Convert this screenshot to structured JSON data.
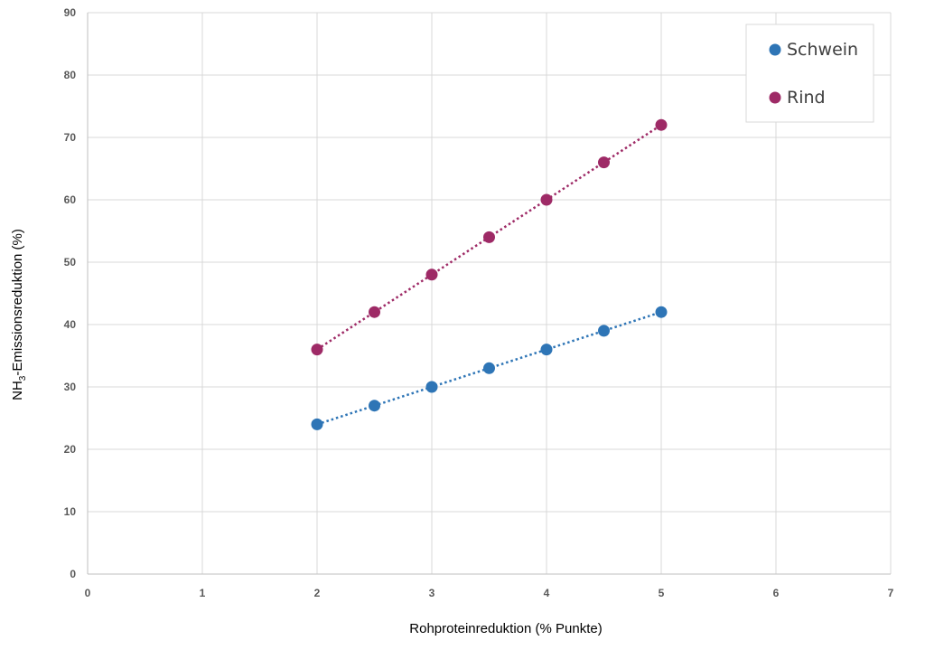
{
  "chart_data": {
    "type": "scatter",
    "x_label": "Rohproteinreduktion (% Punkte)",
    "y_label": {
      "prefix": "NH",
      "subscript": "3",
      "suffix": "-Emissionsreduktion (%)"
    },
    "xlim": [
      0,
      7
    ],
    "ylim": [
      0,
      90
    ],
    "x_ticks": [
      "0",
      "1",
      "2",
      "3",
      "4",
      "5",
      "6",
      "7"
    ],
    "y_ticks": [
      "0",
      "10",
      "20",
      "30",
      "40",
      "50",
      "60",
      "70",
      "80",
      "90"
    ],
    "grid": true,
    "legend_position": "top-right",
    "trendlines": "dotted linear",
    "series": [
      {
        "name": "Schwein",
        "color": "#2E75B6",
        "x": [
          2,
          2.5,
          3,
          3.5,
          4,
          4.5,
          5
        ],
        "y": [
          24,
          27,
          30,
          33,
          36,
          39,
          42
        ]
      },
      {
        "name": "Rind",
        "color": "#9E2A66",
        "x": [
          2,
          2.5,
          3,
          3.5,
          4,
          4.5,
          5
        ],
        "y": [
          36,
          42,
          48,
          54,
          60,
          66,
          72
        ]
      }
    ]
  }
}
